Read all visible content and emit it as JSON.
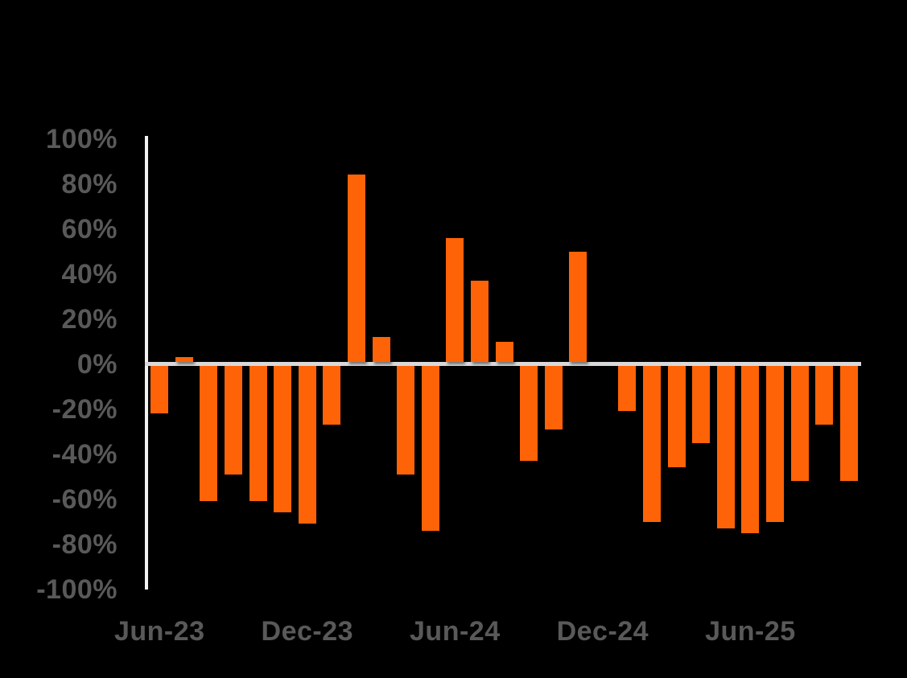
{
  "chart_data": {
    "type": "bar",
    "title": "",
    "categories": [
      "Jun-23",
      "Jul-23",
      "Aug-23",
      "Sep-23",
      "Oct-23",
      "Nov-23",
      "Dec-23",
      "Jan-24",
      "Feb-24",
      "Mar-24",
      "Apr-24",
      "May-24",
      "Jun-24",
      "Jul-24",
      "Aug-24",
      "Sep-24",
      "Oct-24",
      "Nov-24",
      "Dec-24",
      "Jan-25",
      "Feb-25",
      "Mar-25",
      "Apr-25",
      "May-25",
      "Jun-25",
      "Jul-25",
      "Aug-25",
      "Sep-25",
      "Oct-25"
    ],
    "values": [
      -22,
      3,
      -61,
      -49,
      -61,
      -66,
      -71,
      -27,
      84,
      12,
      -49,
      -74,
      56,
      37,
      10,
      -43,
      -29,
      50,
      0,
      -21,
      -70,
      -46,
      -35,
      -73,
      -75,
      -70,
      -52,
      -27,
      -52
    ],
    "xlabel": "",
    "ylabel": "",
    "ylim": [
      -100,
      100
    ],
    "y_tick_step": 20,
    "y_tick_labels": [
      "100%",
      "80%",
      "60%",
      "40%",
      "20%",
      "0%",
      "-20%",
      "-40%",
      "-60%",
      "-80%",
      "-100%"
    ],
    "x_tick_labels": [
      "Jun-23",
      "Dec-23",
      "Jun-24",
      "Dec-24",
      "Jun-25"
    ],
    "x_tick_indices": [
      0,
      6,
      12,
      18,
      24
    ],
    "grid": "off",
    "legend": "none",
    "colors": {
      "bar": "#FF6307",
      "background": "#000000",
      "axis_line": "#F2F2F2",
      "zero_line": "#D9D9D9",
      "tick_label": "#595959"
    }
  }
}
